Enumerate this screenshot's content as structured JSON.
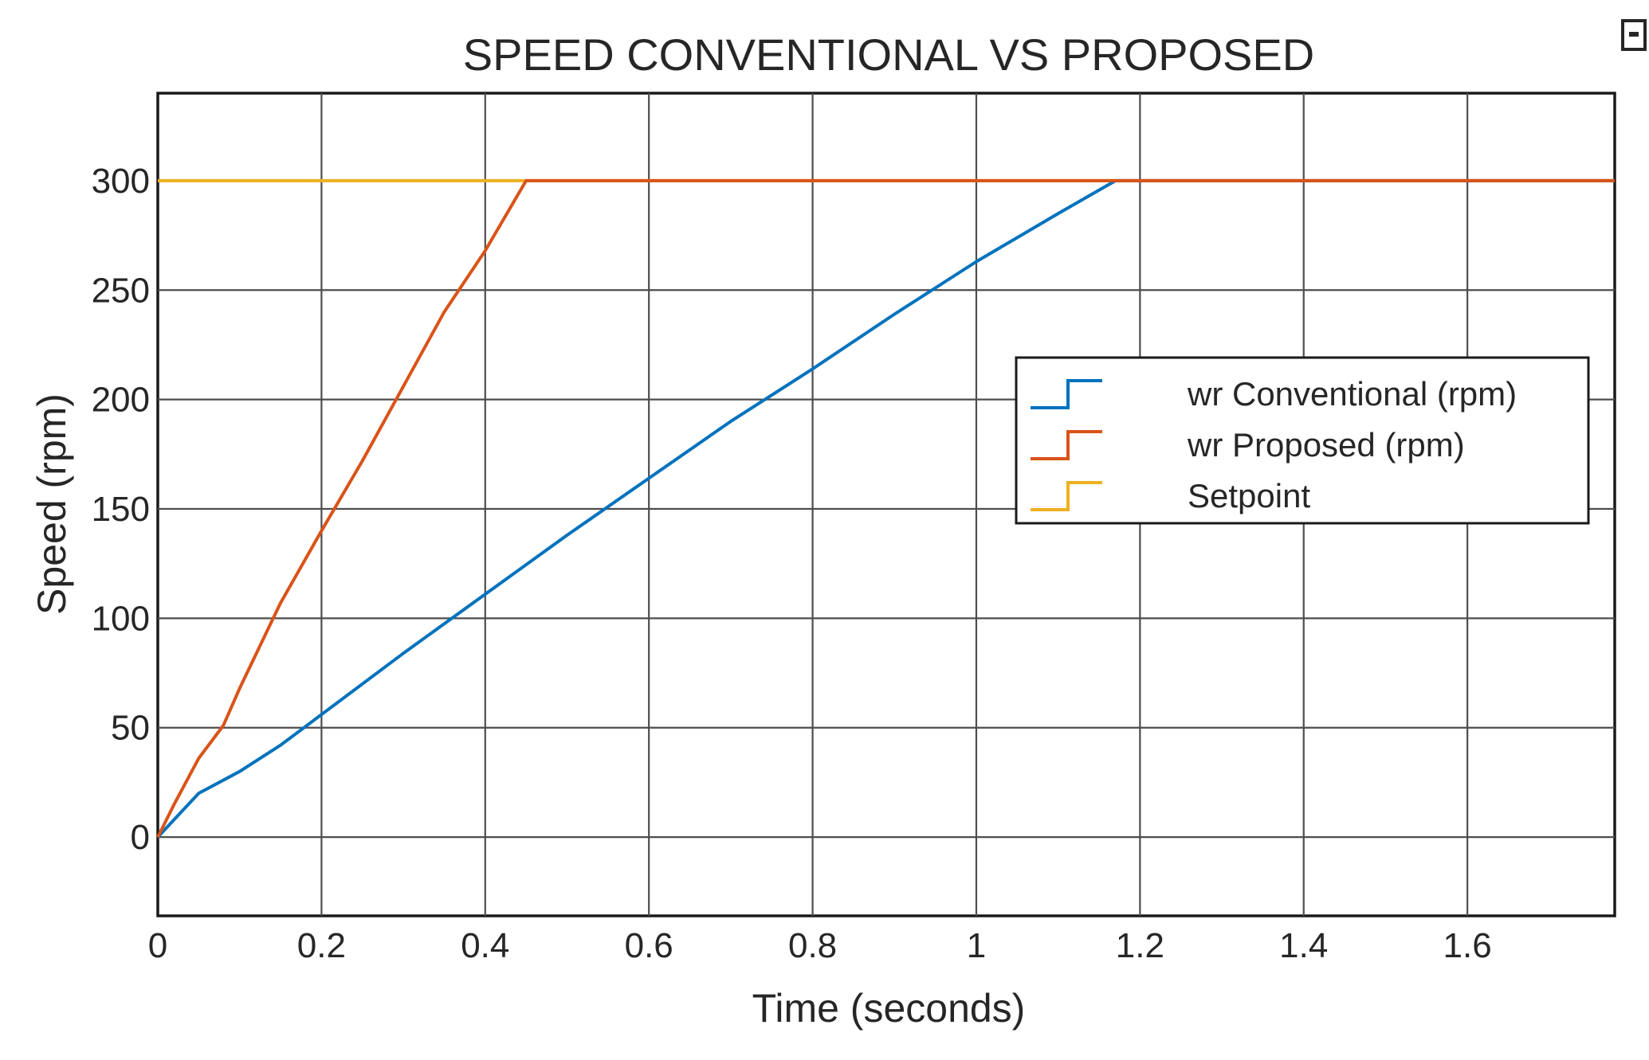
{
  "chart_data": {
    "type": "line",
    "title": "SPEED CONVENTIONAL VS PROPOSED",
    "xlabel": "Time (seconds)",
    "ylabel": "Speed (rpm)",
    "xlim": [
      0,
      1.78
    ],
    "ylim": [
      -36,
      340
    ],
    "xticks": [
      0,
      0.2,
      0.4,
      0.6,
      0.8,
      1,
      1.2,
      1.4,
      1.6
    ],
    "xtick_labels": [
      "0",
      "0.2",
      "0.4",
      "0.6",
      "0.8",
      "1",
      "1.2",
      "1.4",
      "1.6"
    ],
    "yticks": [
      0,
      50,
      100,
      150,
      200,
      250,
      300
    ],
    "ytick_labels": [
      "0",
      "50",
      "100",
      "150",
      "200",
      "250",
      "300"
    ],
    "grid": true,
    "legend_position": "upper-right",
    "series": [
      {
        "name": "wr Conventional (rpm)",
        "color": "#0072BD",
        "x": [
          0,
          0.05,
          0.1,
          0.15,
          0.2,
          0.3,
          0.4,
          0.5,
          0.6,
          0.7,
          0.8,
          0.9,
          1.0,
          1.1,
          1.17,
          1.78
        ],
        "y": [
          0,
          20,
          30,
          42,
          56,
          84,
          111,
          138,
          164,
          190,
          214,
          239,
          263,
          285,
          300,
          300
        ]
      },
      {
        "name": "wr Proposed (rpm)",
        "color": "#D95319",
        "x": [
          0,
          0.02,
          0.05,
          0.08,
          0.1,
          0.15,
          0.2,
          0.25,
          0.3,
          0.35,
          0.4,
          0.45,
          1.78
        ],
        "y": [
          0,
          15,
          36,
          51,
          68,
          107,
          140,
          172,
          206,
          240,
          268,
          300,
          300
        ]
      },
      {
        "name": "Setpoint",
        "color": "#EDB120",
        "x": [
          0,
          1.78
        ],
        "y": [
          300,
          300
        ]
      }
    ]
  }
}
